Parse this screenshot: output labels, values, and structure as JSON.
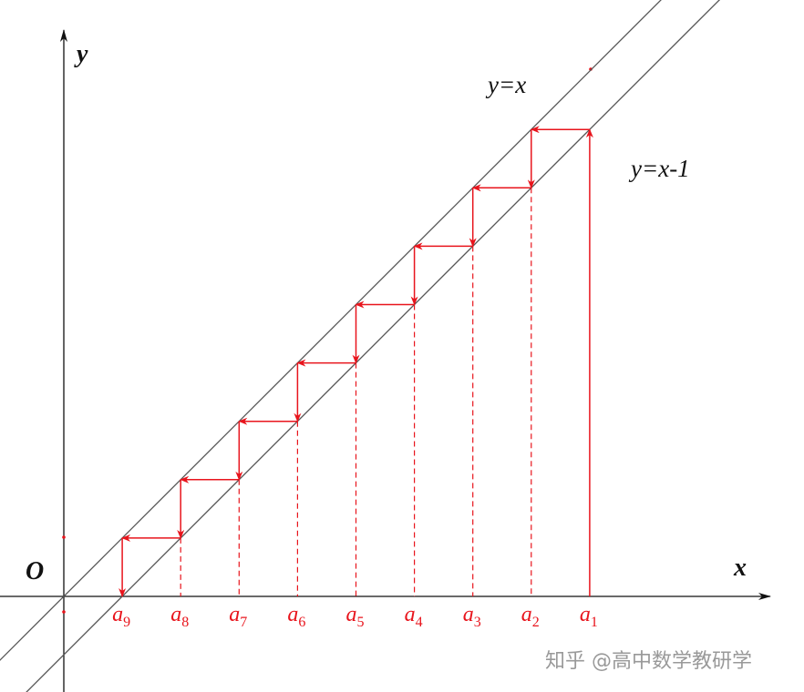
{
  "axes": {
    "x_label": "x",
    "y_label": "y",
    "origin_label": "O"
  },
  "curves": [
    {
      "label": "y=x"
    },
    {
      "label": "y=x-1"
    }
  ],
  "points": [
    {
      "base": "a",
      "sub": "1"
    },
    {
      "base": "a",
      "sub": "2"
    },
    {
      "base": "a",
      "sub": "3"
    },
    {
      "base": "a",
      "sub": "4"
    },
    {
      "base": "a",
      "sub": "5"
    },
    {
      "base": "a",
      "sub": "6"
    },
    {
      "base": "a",
      "sub": "7"
    },
    {
      "base": "a",
      "sub": "8"
    },
    {
      "base": "a",
      "sub": "9"
    }
  ],
  "watermark": "知乎 @高中数学教研学"
}
